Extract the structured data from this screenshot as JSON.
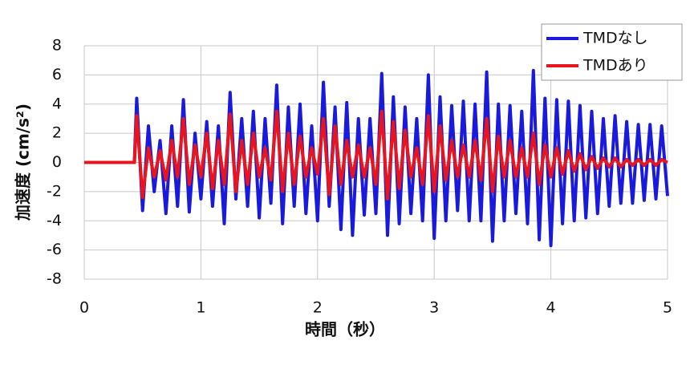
{
  "chart_data": {
    "type": "line",
    "x_label": "時間（秒）",
    "y_label": "加速度 (cm/s²)",
    "xlim": [
      0,
      5
    ],
    "xticks": [
      0,
      1,
      2,
      3,
      4,
      5
    ],
    "ylim": [
      -8,
      8
    ],
    "yticks": [
      -8,
      -6,
      -4,
      -2,
      0,
      2,
      4,
      6,
      8
    ],
    "grid": true,
    "legend": "top-right",
    "x": [
      0,
      0.43,
      0.45,
      0.5,
      0.55,
      0.6,
      0.65,
      0.7,
      0.75,
      0.8,
      0.85,
      0.9,
      0.95,
      1,
      1.05,
      1.1,
      1.15,
      1.2,
      1.25,
      1.3,
      1.35,
      1.4,
      1.45,
      1.5,
      1.55,
      1.6,
      1.65,
      1.7,
      1.75,
      1.8,
      1.85,
      1.9,
      1.95,
      2,
      2.05,
      2.1,
      2.15,
      2.2,
      2.25,
      2.3,
      2.35,
      2.4,
      2.45,
      2.5,
      2.55,
      2.6,
      2.65,
      2.7,
      2.75,
      2.8,
      2.85,
      2.9,
      2.95,
      3,
      3.05,
      3.1,
      3.15,
      3.2,
      3.25,
      3.3,
      3.35,
      3.4,
      3.45,
      3.5,
      3.55,
      3.6,
      3.65,
      3.7,
      3.75,
      3.8,
      3.85,
      3.9,
      3.95,
      4,
      4.05,
      4.1,
      4.15,
      4.2,
      4.25,
      4.3,
      4.35,
      4.4,
      4.45,
      4.5,
      4.55,
      4.6,
      4.65,
      4.7,
      4.75,
      4.8,
      4.85,
      4.9,
      4.95,
      5
    ],
    "series": [
      {
        "name": "TMDなし",
        "color": "#1a1adc",
        "values": [
          0,
          0,
          4.4,
          -3.3,
          2.5,
          -2,
          1.5,
          -3.5,
          2.5,
          -3,
          4.3,
          -3.4,
          2,
          -2.5,
          2.8,
          -3,
          2.5,
          -4.2,
          4.8,
          -2.5,
          3,
          -3,
          3.5,
          -3.8,
          3,
          -2.8,
          5.3,
          -4.2,
          3.8,
          -3,
          4,
          -3.5,
          2.5,
          -4,
          5.5,
          -3,
          3.8,
          -4.6,
          4.1,
          -5,
          3,
          -3.6,
          3,
          -3.5,
          6.1,
          -5,
          4.5,
          -4.2,
          3.8,
          -3.5,
          3,
          -4,
          6,
          -5.2,
          4.5,
          -4,
          3.9,
          -3.3,
          4.2,
          -4,
          4,
          -4,
          6.2,
          -5.4,
          4,
          -4,
          3.9,
          -3.5,
          3.5,
          -4.2,
          6.3,
          -5.3,
          4.4,
          -5.7,
          4.3,
          -4.2,
          4.2,
          -4,
          3.9,
          -3.8,
          3.5,
          -3.5,
          3,
          -3,
          3.2,
          -2.8,
          2.8,
          -2.8,
          2.6,
          -2.6,
          2.6,
          -2.5,
          2.5,
          -2.3
        ]
      },
      {
        "name": "TMDあり",
        "color": "#e8141e",
        "values": [
          0,
          0,
          3.2,
          -2.4,
          1,
          -1,
          0.8,
          -1.2,
          1.5,
          -1,
          3,
          -1.5,
          1.2,
          -1,
          2,
          -1.8,
          1.5,
          -1.5,
          3.3,
          -2,
          1.5,
          -1.5,
          2,
          -1,
          1,
          -1.2,
          3.5,
          -2,
          2,
          -1.5,
          1.8,
          -1,
          1,
          -0.8,
          3,
          -2.2,
          2.5,
          -1.5,
          1.5,
          -1,
          1.2,
          -1,
          1,
          -1.5,
          3.5,
          -2.5,
          2.8,
          -1.8,
          2.2,
          -1,
          1,
          -1.5,
          3.2,
          -2,
          2.5,
          -1.2,
          1.5,
          -1,
          1.2,
          -1,
          1.5,
          -1.2,
          3,
          -2,
          1.8,
          -1,
          1.5,
          -1,
          1,
          -1,
          2,
          -1.5,
          1.2,
          -1,
          1,
          -0.8,
          0.8,
          -0.6,
          0.6,
          -0.5,
          0.4,
          -0.4,
          0.3,
          -0.3,
          0.3,
          -0.3,
          0.2,
          -0.2,
          0.2,
          -0.2,
          0.2,
          -0.2,
          0.2,
          0
        ]
      }
    ]
  }
}
